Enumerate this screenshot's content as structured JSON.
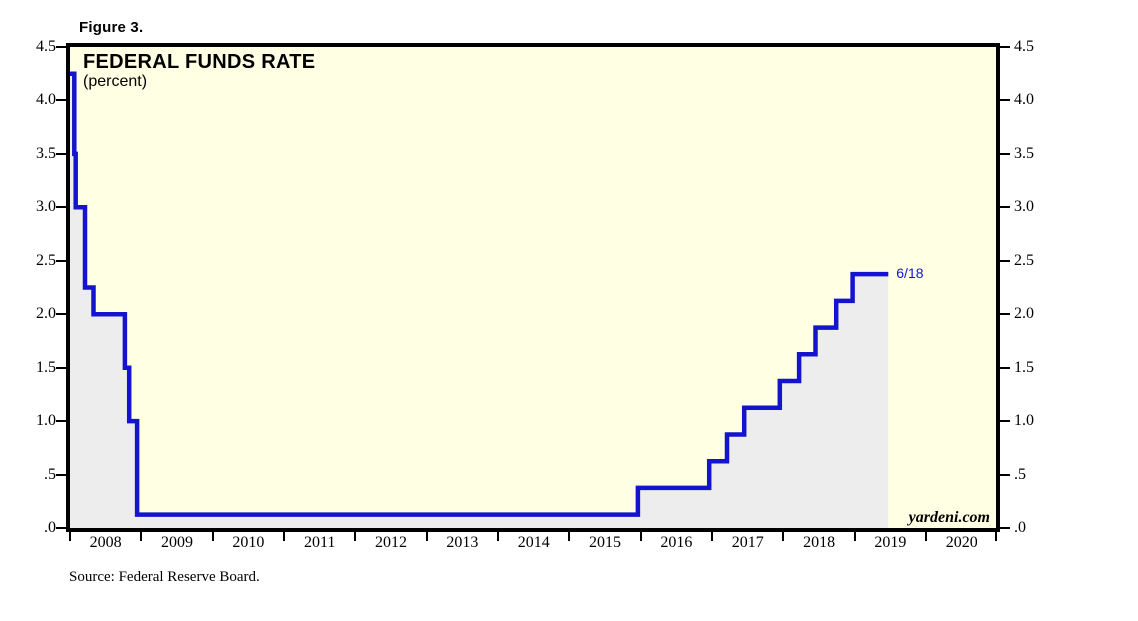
{
  "figure_label": "Figure 3.",
  "chart": {
    "title": "FEDERAL FUNDS RATE",
    "subtitle": "(percent)",
    "watermark": "yardeni.com",
    "colors": {
      "line": "#1414CE",
      "annotation_text": "#1414CE",
      "plot_background": "#FFFFE4",
      "area_fill": "#EDEDED",
      "border": "#000000"
    }
  },
  "source_note": "Source: Federal Reserve Board.",
  "chart_data": {
    "type": "line",
    "step": true,
    "title": "FEDERAL FUNDS RATE",
    "xlabel": "",
    "ylabel": "percent",
    "grid": "off",
    "legend_position": "none",
    "x_range": [
      2008,
      2020.98
    ],
    "ylim": [
      0,
      4.5
    ],
    "y_ticks": {
      "labels": [
        "4.5",
        "4.0",
        "3.5",
        "3.0",
        "2.5",
        "2.0",
        "1.5",
        "1.0",
        ".5",
        ".0"
      ],
      "values": [
        4.5,
        4.0,
        3.5,
        3.0,
        2.5,
        2.0,
        1.5,
        1.0,
        0.5,
        0.0
      ],
      "sides": [
        "left",
        "right"
      ]
    },
    "x_ticks": {
      "labels": [
        "2008",
        "2009",
        "2010",
        "2011",
        "2012",
        "2013",
        "2014",
        "2015",
        "2016",
        "2017",
        "2018",
        "2019",
        "2020"
      ],
      "years": [
        2008,
        2009,
        2010,
        2011,
        2012,
        2013,
        2014,
        2015,
        2016,
        2017,
        2018,
        2019,
        2020
      ]
    },
    "series": [
      {
        "name": "Federal funds rate target (percent)",
        "points": [
          [
            2008.0,
            4.25
          ],
          [
            2008.06,
            3.5
          ],
          [
            2008.08,
            3.0
          ],
          [
            2008.21,
            2.25
          ],
          [
            2008.33,
            2.0
          ],
          [
            2008.77,
            1.5
          ],
          [
            2008.83,
            1.0
          ],
          [
            2008.94,
            0.125
          ],
          [
            2015.96,
            0.375
          ],
          [
            2016.96,
            0.625
          ],
          [
            2017.21,
            0.875
          ],
          [
            2017.45,
            1.125
          ],
          [
            2017.95,
            1.375
          ],
          [
            2018.22,
            1.625
          ],
          [
            2018.45,
            1.875
          ],
          [
            2018.74,
            2.125
          ],
          [
            2018.97,
            2.375
          ],
          [
            2019.47,
            2.375
          ]
        ]
      }
    ],
    "annotation": {
      "text": "6/18",
      "x": 2019.47,
      "y": 2.375
    }
  }
}
